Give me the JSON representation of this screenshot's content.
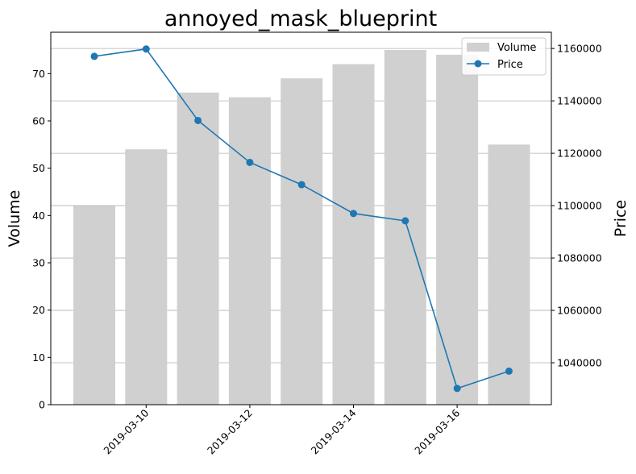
{
  "chart_data": {
    "type": "bar+line",
    "title": "annoyed_mask_blueprint",
    "x": [
      "2019-03-09",
      "2019-03-10",
      "2019-03-11",
      "2019-03-12",
      "2019-03-13",
      "2019-03-14",
      "2019-03-15",
      "2019-03-16",
      "2019-03-17"
    ],
    "x_tick_labels": [
      "2019-03-10",
      "2019-03-12",
      "2019-03-14",
      "2019-03-16"
    ],
    "series": [
      {
        "name": "Volume",
        "type": "bar",
        "axis": "left",
        "color": "#d0d0d0",
        "values": [
          42,
          54,
          66,
          65,
          69,
          72,
          75,
          74,
          55
        ]
      },
      {
        "name": "Price",
        "type": "line",
        "axis": "right",
        "color": "#1f77b4",
        "values": [
          1157000,
          1159800,
          1132500,
          1116500,
          1108000,
          1097000,
          1094200,
          1030200,
          1036800
        ]
      }
    ],
    "y_left": {
      "label": "Volume",
      "ylim": [
        0,
        78.75
      ],
      "ticks": [
        0,
        10,
        20,
        30,
        40,
        50,
        60,
        70
      ]
    },
    "y_right": {
      "label": "Price",
      "ylim": [
        1024000,
        1166200
      ],
      "ticks": [
        1040000,
        1060000,
        1080000,
        1100000,
        1120000,
        1140000,
        1160000
      ]
    },
    "grid": "horizontal (right axis)",
    "legend": {
      "position": "top-right",
      "entries": [
        "Volume",
        "Price"
      ]
    }
  }
}
